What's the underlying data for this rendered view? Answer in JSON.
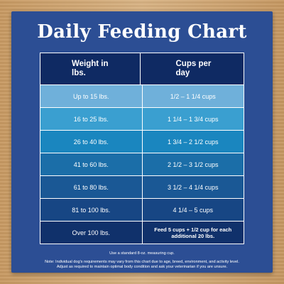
{
  "title": "Daily Feeding Chart",
  "table": {
    "headers": [
      "Weight in\nlbs.",
      "Cups per\nday"
    ],
    "rows": [
      {
        "weight": "Up to 15 lbs.",
        "cups": "1/2 – 1 1/4 cups",
        "color": "#6fb0da"
      },
      {
        "weight": "16 to 25 lbs.",
        "cups": "1 1/4 – 1 3/4 cups",
        "color": "#3a9fd0"
      },
      {
        "weight": "26 to 40 lbs.",
        "cups": "1 3/4 – 2 1/2 cups",
        "color": "#1a86bf"
      },
      {
        "weight": "41 to 60 lbs.",
        "cups": "2 1/2 – 3 1/2 cups",
        "color": "#1b6ea8"
      },
      {
        "weight": "61 to 80 lbs.",
        "cups": "3 1/2 – 4 1/4 cups",
        "color": "#1a5895"
      },
      {
        "weight": "81 to 100 lbs.",
        "cups": "4 1/4 – 5 cups",
        "color": "#174684"
      },
      {
        "weight": "Over 100 lbs.",
        "cups": "Feed 5 cups + 1/2 cup for each additional 20 lbs.",
        "color": "#10316b"
      }
    ]
  },
  "notes": {
    "measuring": "Use a standard 8-oz. measuring cup.",
    "line1": "Note: Individual dog's requirements may vary from this chart due to age, breed, environment, and activity level.",
    "line2": "Adjust as required to maintain optimal body condition and ask your veterinarian if you are unsure."
  }
}
